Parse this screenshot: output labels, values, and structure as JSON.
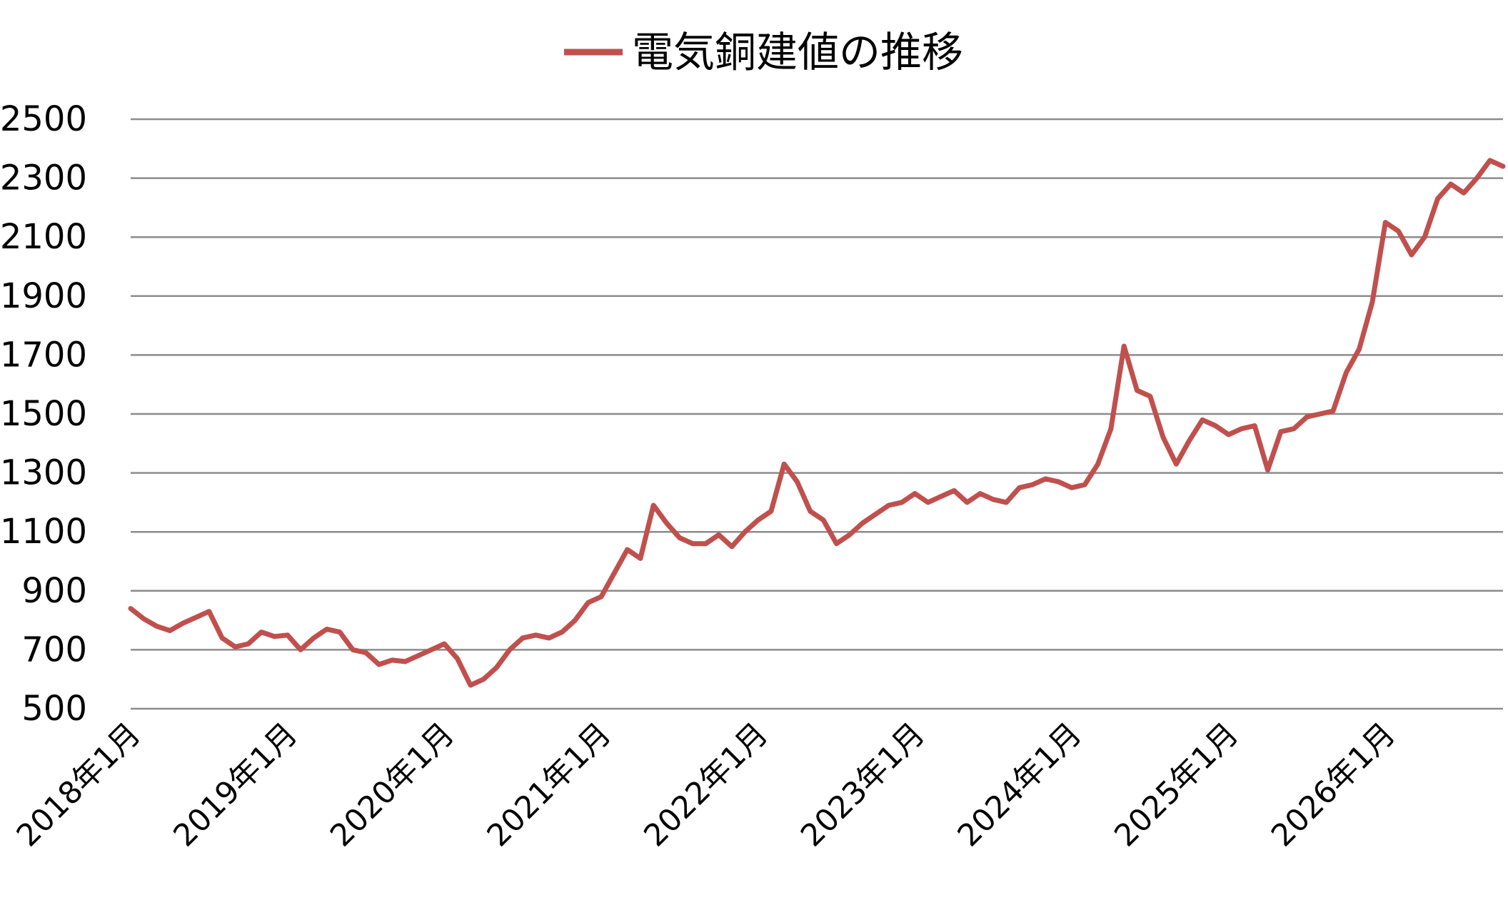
{
  "chart_data": {
    "type": "line",
    "title": "",
    "xlabel": "",
    "ylabel": "",
    "legend_position": "top-center",
    "grid": true,
    "line_color": "#C0504D",
    "x_range": [
      "2018-01",
      "2026-10"
    ],
    "ylim": [
      500,
      2500
    ],
    "yticks": [
      500,
      700,
      900,
      1100,
      1300,
      1500,
      1700,
      1900,
      2100,
      2300,
      2500
    ],
    "ytick_labels": [
      "500",
      "700",
      "900",
      "1100",
      "1300",
      "1500",
      "1700",
      "1900",
      "2100",
      "2300",
      "2500"
    ],
    "xticks": [
      {
        "label": "2018年1月",
        "x": "2018-01"
      },
      {
        "label": "2019年1月",
        "x": "2019-01"
      },
      {
        "label": "2020年1月",
        "x": "2020-01"
      },
      {
        "label": "2021年1月",
        "x": "2021-01"
      },
      {
        "label": "2022年1月",
        "x": "2022-01"
      },
      {
        "label": "2023年1月",
        "x": "2023-01"
      },
      {
        "label": "2024年1月",
        "x": "2024-01"
      },
      {
        "label": "2025年1月",
        "x": "2025-01"
      },
      {
        "label": "2026年1月",
        "x": "2026-01"
      }
    ],
    "series": [
      {
        "name": "電気銅建値の推移",
        "points": [
          [
            "2018-01",
            840
          ],
          [
            "2018-02",
            805
          ],
          [
            "2018-03",
            780
          ],
          [
            "2018-04",
            765
          ],
          [
            "2018-05",
            790
          ],
          [
            "2018-06",
            810
          ],
          [
            "2018-07",
            830
          ],
          [
            "2018-08",
            740
          ],
          [
            "2018-09",
            710
          ],
          [
            "2018-10",
            720
          ],
          [
            "2018-11",
            760
          ],
          [
            "2018-12",
            745
          ],
          [
            "2019-01",
            750
          ],
          [
            "2019-02",
            700
          ],
          [
            "2019-03",
            740
          ],
          [
            "2019-04",
            770
          ],
          [
            "2019-05",
            760
          ],
          [
            "2019-06",
            700
          ],
          [
            "2019-07",
            690
          ],
          [
            "2019-08",
            650
          ],
          [
            "2019-09",
            665
          ],
          [
            "2019-10",
            660
          ],
          [
            "2019-11",
            680
          ],
          [
            "2019-12",
            700
          ],
          [
            "2020-01",
            720
          ],
          [
            "2020-02",
            670
          ],
          [
            "2020-03",
            580
          ],
          [
            "2020-04",
            600
          ],
          [
            "2020-05",
            640
          ],
          [
            "2020-06",
            700
          ],
          [
            "2020-07",
            740
          ],
          [
            "2020-08",
            750
          ],
          [
            "2020-09",
            740
          ],
          [
            "2020-10",
            760
          ],
          [
            "2020-11",
            800
          ],
          [
            "2020-12",
            860
          ],
          [
            "2021-01",
            880
          ],
          [
            "2021-02",
            960
          ],
          [
            "2021-03",
            1040
          ],
          [
            "2021-04",
            1010
          ],
          [
            "2021-05",
            1190
          ],
          [
            "2021-06",
            1130
          ],
          [
            "2021-07",
            1080
          ],
          [
            "2021-08",
            1060
          ],
          [
            "2021-09",
            1060
          ],
          [
            "2021-10",
            1090
          ],
          [
            "2021-11",
            1050
          ],
          [
            "2021-12",
            1100
          ],
          [
            "2022-01",
            1140
          ],
          [
            "2022-02",
            1170
          ],
          [
            "2022-03",
            1330
          ],
          [
            "2022-04",
            1270
          ],
          [
            "2022-05",
            1170
          ],
          [
            "2022-06",
            1140
          ],
          [
            "2022-07",
            1060
          ],
          [
            "2022-08",
            1090
          ],
          [
            "2022-09",
            1130
          ],
          [
            "2022-10",
            1160
          ],
          [
            "2022-11",
            1190
          ],
          [
            "2022-12",
            1200
          ],
          [
            "2023-01",
            1230
          ],
          [
            "2023-02",
            1200
          ],
          [
            "2023-03",
            1220
          ],
          [
            "2023-04",
            1240
          ],
          [
            "2023-05",
            1200
          ],
          [
            "2023-06",
            1230
          ],
          [
            "2023-07",
            1210
          ],
          [
            "2023-08",
            1200
          ],
          [
            "2023-09",
            1250
          ],
          [
            "2023-10",
            1260
          ],
          [
            "2023-11",
            1280
          ],
          [
            "2023-12",
            1270
          ],
          [
            "2024-01",
            1250
          ],
          [
            "2024-02",
            1260
          ],
          [
            "2024-03",
            1330
          ],
          [
            "2024-04",
            1450
          ],
          [
            "2024-05",
            1730
          ],
          [
            "2024-06",
            1580
          ],
          [
            "2024-07",
            1560
          ],
          [
            "2024-08",
            1420
          ],
          [
            "2024-09",
            1330
          ],
          [
            "2024-10",
            1410
          ],
          [
            "2024-11",
            1480
          ],
          [
            "2024-12",
            1460
          ],
          [
            "2025-01",
            1430
          ],
          [
            "2025-02",
            1450
          ],
          [
            "2025-03",
            1460
          ],
          [
            "2025-04",
            1310
          ],
          [
            "2025-05",
            1440
          ],
          [
            "2025-06",
            1450
          ],
          [
            "2025-07",
            1490
          ],
          [
            "2025-08",
            1500
          ],
          [
            "2025-09",
            1510
          ],
          [
            "2025-10",
            1640
          ],
          [
            "2025-11",
            1720
          ],
          [
            "2025-12",
            1880
          ],
          [
            "2026-01",
            2150
          ],
          [
            "2026-02",
            2120
          ],
          [
            "2026-03",
            2040
          ],
          [
            "2026-04",
            2100
          ],
          [
            "2026-05",
            2230
          ],
          [
            "2026-06",
            2280
          ],
          [
            "2026-07",
            2250
          ],
          [
            "2026-08",
            2300
          ],
          [
            "2026-09",
            2360
          ],
          [
            "2026-10",
            2340
          ]
        ]
      }
    ]
  }
}
